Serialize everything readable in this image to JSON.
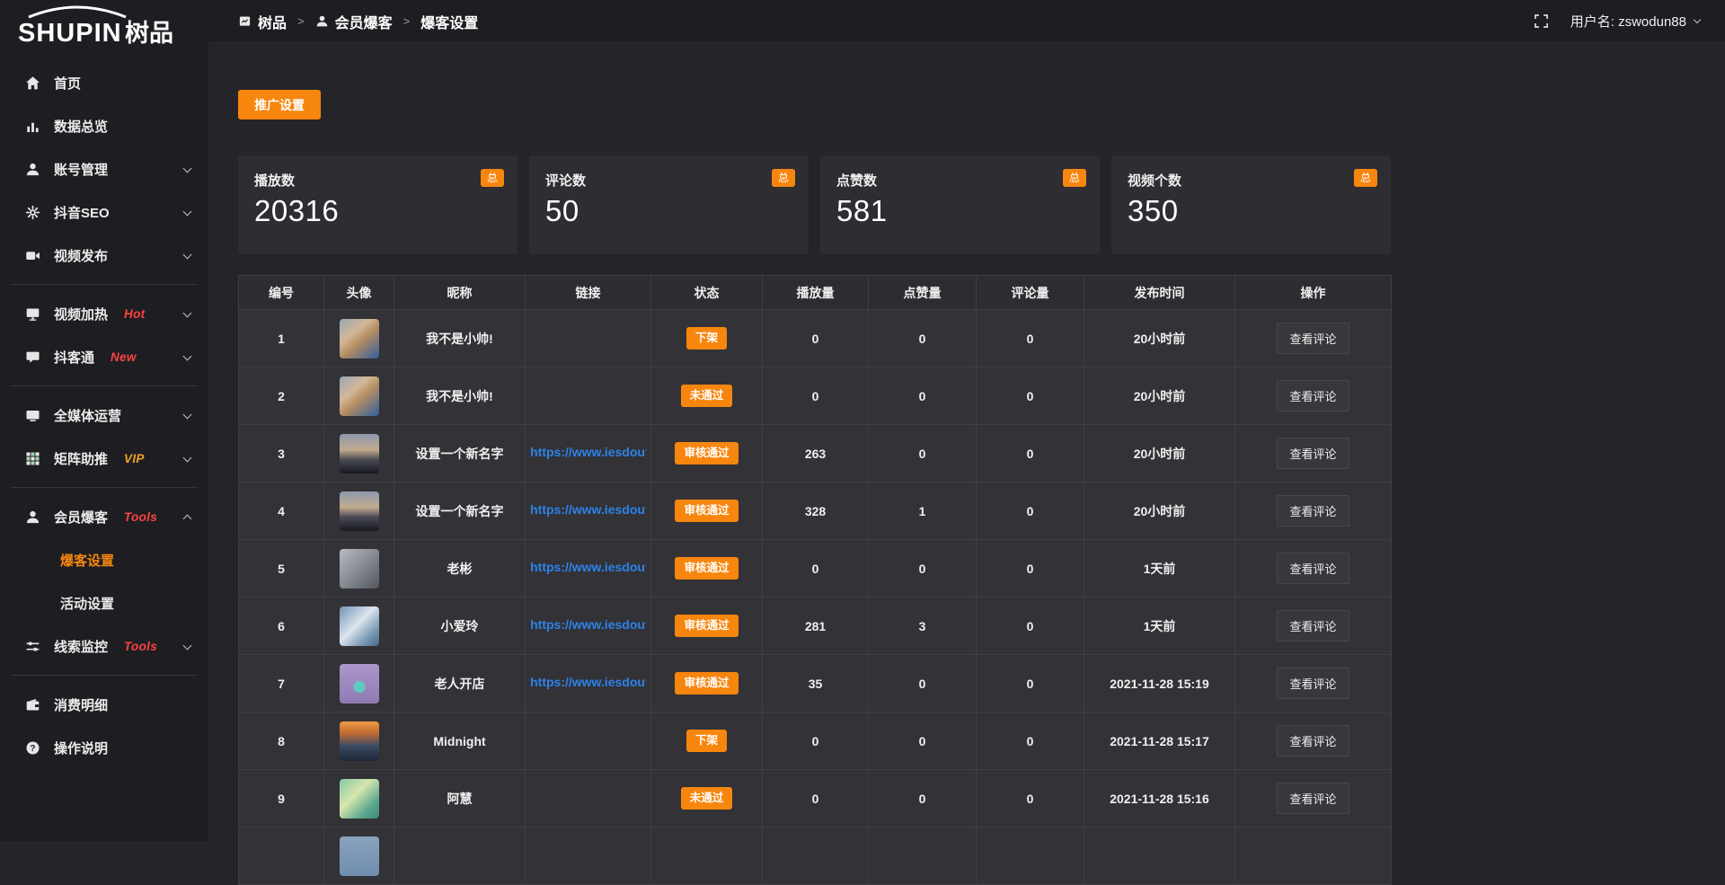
{
  "logo": {
    "en": "SHUPIN",
    "cn": "树品"
  },
  "topbar": {
    "breadcrumb": [
      {
        "icon": "app-icon",
        "label": "树品"
      },
      {
        "icon": "user-icon",
        "label": "会员爆客"
      },
      {
        "icon": "",
        "label": "爆客设置"
      }
    ],
    "separator": ">",
    "username_label": "用户名: zswodun88"
  },
  "sidebar": {
    "items": [
      {
        "icon": "home-icon",
        "label": "首页"
      },
      {
        "icon": "chart-icon",
        "label": "数据总览"
      },
      {
        "icon": "user-icon",
        "label": "账号管理",
        "chevron": "down"
      },
      {
        "icon": "gear-icon",
        "label": "抖音SEO",
        "chevron": "down"
      },
      {
        "icon": "video-icon",
        "label": "视频发布",
        "chevron": "down",
        "divider_after": true
      },
      {
        "icon": "heat-icon",
        "label": "视频加热",
        "badge": "Hot",
        "badge_style": "red",
        "chevron": "down"
      },
      {
        "icon": "comment-icon",
        "label": "抖客通",
        "badge": "New",
        "badge_style": "red",
        "chevron": "down",
        "divider_after": true
      },
      {
        "icon": "display-icon",
        "label": "全媒体运营",
        "chevron": "down"
      },
      {
        "icon": "grid-icon",
        "label": "矩阵助推",
        "badge": "VIP",
        "badge_style": "gold",
        "chevron": "down",
        "divider_after": true
      },
      {
        "icon": "member-icon",
        "label": "会员爆客",
        "badge": "Tools",
        "badge_style": "red",
        "chevron": "up",
        "children": [
          {
            "label": "爆客设置",
            "active": true
          },
          {
            "label": "活动设置",
            "active": false
          }
        ]
      },
      {
        "icon": "sliders-icon",
        "label": "线索监控",
        "badge": "Tools",
        "badge_style": "red",
        "chevron": "down",
        "divider_after": true
      },
      {
        "icon": "wallet-icon",
        "label": "消费明细"
      },
      {
        "icon": "question-icon",
        "label": "操作说明"
      }
    ]
  },
  "toolbar": {
    "promo_button": "推广设置"
  },
  "stats": {
    "badge": "总",
    "cards": [
      {
        "label": "播放数",
        "value": "20316"
      },
      {
        "label": "评论数",
        "value": "50"
      },
      {
        "label": "点赞数",
        "value": "581"
      },
      {
        "label": "视频个数",
        "value": "350"
      }
    ]
  },
  "table": {
    "columns": [
      "编号",
      "头像",
      "昵称",
      "链接",
      "状态",
      "播放量",
      "点赞量",
      "评论量",
      "发布时间",
      "操作"
    ],
    "action_label": "查看评论",
    "rows": [
      {
        "id": "1",
        "avatar": "boy",
        "nickname": "我不是小帅!",
        "link": "",
        "status": "下架",
        "plays": "0",
        "likes": "0",
        "comments": "0",
        "time": "20小时前"
      },
      {
        "id": "2",
        "avatar": "boy",
        "nickname": "我不是小帅!",
        "link": "",
        "status": "未通过",
        "plays": "0",
        "likes": "0",
        "comments": "0",
        "time": "20小时前"
      },
      {
        "id": "3",
        "avatar": "sky",
        "nickname": "设置一个新名字",
        "link": "https://www.iesdouyin.c",
        "status": "审核通过",
        "plays": "263",
        "likes": "0",
        "comments": "0",
        "time": "20小时前"
      },
      {
        "id": "4",
        "avatar": "sky",
        "nickname": "设置一个新名字",
        "link": "https://www.iesdouyin.c",
        "status": "审核通过",
        "plays": "328",
        "likes": "1",
        "comments": "0",
        "time": "20小时前"
      },
      {
        "id": "5",
        "avatar": "man",
        "nickname": "老彬",
        "link": "https://www.iesdouyin.c",
        "status": "审核通过",
        "plays": "0",
        "likes": "0",
        "comments": "0",
        "time": "1天前"
      },
      {
        "id": "6",
        "avatar": "girl",
        "nickname": "小爱玲",
        "link": "https://www.iesdouyin.c",
        "status": "审核通过",
        "plays": "281",
        "likes": "3",
        "comments": "0",
        "time": "1天前"
      },
      {
        "id": "7",
        "avatar": "cartoon",
        "nickname": "老人开店",
        "link": "https://www.iesdouyin.c",
        "status": "审核通过",
        "plays": "35",
        "likes": "0",
        "comments": "0",
        "time": "2021-11-28 15:19"
      },
      {
        "id": "8",
        "avatar": "sunset",
        "nickname": "Midnight",
        "link": "",
        "status": "下架",
        "plays": "0",
        "likes": "0",
        "comments": "0",
        "time": "2021-11-28 15:17"
      },
      {
        "id": "9",
        "avatar": "green",
        "nickname": "阿慧",
        "link": "",
        "status": "未通过",
        "plays": "0",
        "likes": "0",
        "comments": "0",
        "time": "2021-11-28 15:16"
      },
      {
        "id": "",
        "avatar": "blue",
        "nickname": "",
        "link": "",
        "status": "",
        "plays": "",
        "likes": "",
        "comments": "",
        "time": "",
        "partial": true
      }
    ]
  },
  "colors": {
    "accent_orange": "#f7860e",
    "link_blue": "#2e82e8",
    "badge_red": "#ff4242",
    "badge_gold": "#f0a125",
    "sidebar_bg": "#1e1e22",
    "main_bg": "#252529",
    "panel_bg": "#2d2d32",
    "table_row_bg": "#323237"
  }
}
